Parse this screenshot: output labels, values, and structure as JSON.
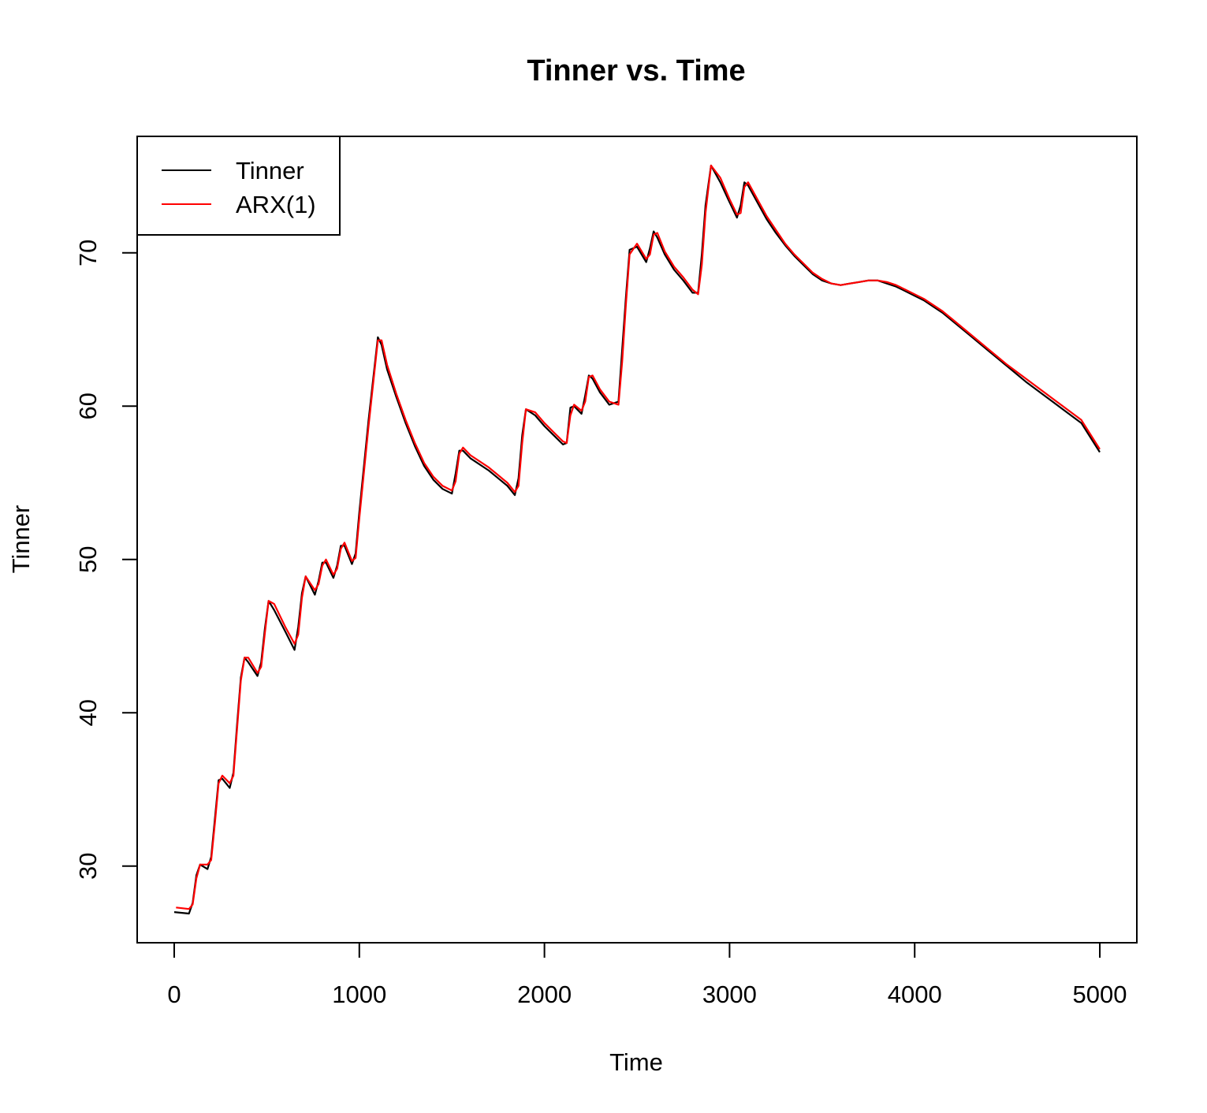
{
  "chart_data": {
    "type": "line",
    "title": "Tinner vs. Time",
    "xlabel": "Time",
    "ylabel": "Tinner",
    "xlim": [
      -200,
      5200
    ],
    "ylim": [
      25,
      77.6
    ],
    "xticks": [
      0,
      1000,
      2000,
      3000,
      4000,
      5000
    ],
    "yticks": [
      30,
      40,
      50,
      60,
      70
    ],
    "grid": false,
    "legend": {
      "position": "top-left",
      "entries": [
        "Tinner",
        "ARX(1)"
      ]
    },
    "series": [
      {
        "name": "Tinner",
        "color": "#000000",
        "x": [
          0,
          80,
          100,
          120,
          140,
          180,
          200,
          220,
          240,
          260,
          300,
          320,
          340,
          360,
          380,
          400,
          450,
          470,
          490,
          510,
          540,
          600,
          650,
          670,
          690,
          710,
          760,
          780,
          800,
          820,
          860,
          880,
          900,
          920,
          960,
          980,
          1000,
          1050,
          1100,
          1120,
          1150,
          1200,
          1250,
          1300,
          1350,
          1400,
          1450,
          1500,
          1520,
          1540,
          1560,
          1600,
          1700,
          1800,
          1840,
          1860,
          1880,
          1900,
          1950,
          2000,
          2050,
          2100,
          2120,
          2140,
          2160,
          2200,
          2220,
          2240,
          2260,
          2300,
          2350,
          2400,
          2420,
          2440,
          2460,
          2500,
          2550,
          2570,
          2590,
          2610,
          2650,
          2700,
          2750,
          2800,
          2830,
          2850,
          2870,
          2900,
          2950,
          3000,
          3040,
          3060,
          3080,
          3100,
          3150,
          3200,
          3250,
          3300,
          3350,
          3400,
          3450,
          3500,
          3550,
          3600,
          3650,
          3700,
          3750,
          3800,
          3850,
          3900,
          3950,
          4000,
          4050,
          4100,
          4150,
          4200,
          4300,
          4400,
          4500,
          4600,
          4700,
          4800,
          4900,
          5000
        ],
        "values": [
          27,
          26.9,
          27.6,
          29.4,
          30.1,
          29.8,
          30.6,
          33.1,
          35.6,
          35.7,
          35.1,
          36.1,
          39.3,
          42.3,
          43.6,
          43.3,
          42.4,
          43.3,
          45.5,
          47.3,
          46.7,
          45.3,
          44.1,
          45.6,
          47.8,
          48.9,
          47.7,
          48.6,
          49.8,
          49.8,
          48.8,
          49.6,
          50.9,
          50.9,
          49.7,
          50.4,
          53.1,
          59.1,
          64.5,
          64.0,
          62.4,
          60.6,
          58.9,
          57.4,
          56.1,
          55.2,
          54.6,
          54.3,
          55.6,
          57.1,
          57.1,
          56.6,
          55.8,
          54.8,
          54.2,
          55.3,
          58.1,
          59.8,
          59.4,
          58.7,
          58.1,
          57.5,
          57.6,
          59.9,
          60.0,
          59.5,
          60.7,
          62.0,
          61.8,
          60.9,
          60.1,
          60.3,
          63.7,
          67.1,
          70.2,
          70.4,
          69.4,
          70.3,
          71.4,
          71.0,
          69.9,
          68.9,
          68.2,
          67.4,
          67.4,
          69.9,
          73.1,
          75.7,
          74.6,
          73.3,
          72.3,
          73.1,
          74.6,
          74.4,
          73.3,
          72.2,
          71.3,
          70.5,
          69.8,
          69.2,
          68.6,
          68.2,
          68.0,
          67.9,
          68.0,
          68.1,
          68.2,
          68.2,
          68.0,
          67.8,
          67.5,
          67.2,
          66.9,
          66.5,
          66.1,
          65.6,
          64.6,
          63.6,
          62.6,
          61.6,
          60.7,
          59.8,
          58.9,
          57.0
        ]
      },
      {
        "name": "ARX(1)",
        "color": "#ff0000",
        "x": [
          10,
          80,
          100,
          120,
          140,
          180,
          200,
          220,
          240,
          260,
          300,
          320,
          340,
          360,
          380,
          400,
          450,
          470,
          490,
          510,
          540,
          600,
          650,
          670,
          690,
          710,
          760,
          780,
          800,
          820,
          860,
          880,
          900,
          920,
          960,
          980,
          1000,
          1050,
          1100,
          1120,
          1150,
          1200,
          1250,
          1300,
          1350,
          1400,
          1450,
          1500,
          1520,
          1540,
          1560,
          1600,
          1700,
          1800,
          1840,
          1860,
          1880,
          1900,
          1950,
          2000,
          2050,
          2100,
          2120,
          2140,
          2160,
          2200,
          2220,
          2240,
          2260,
          2300,
          2350,
          2400,
          2420,
          2440,
          2460,
          2500,
          2550,
          2570,
          2590,
          2610,
          2650,
          2700,
          2750,
          2800,
          2830,
          2850,
          2870,
          2900,
          2950,
          3000,
          3040,
          3060,
          3080,
          3100,
          3150,
          3200,
          3250,
          3300,
          3350,
          3400,
          3450,
          3500,
          3550,
          3600,
          3650,
          3700,
          3750,
          3800,
          3850,
          3900,
          3950,
          4000,
          4050,
          4100,
          4150,
          4200,
          4300,
          4400,
          4500,
          4600,
          4700,
          4800,
          4900,
          5000
        ],
        "values": [
          27.3,
          27.2,
          27.5,
          29.2,
          30.1,
          30.1,
          30.4,
          32.8,
          35.4,
          35.9,
          35.4,
          35.9,
          39.0,
          42.1,
          43.6,
          43.6,
          42.6,
          43.0,
          45.2,
          47.3,
          47.1,
          45.6,
          44.5,
          45.1,
          47.5,
          48.9,
          48.0,
          48.4,
          49.6,
          50.0,
          49.0,
          49.4,
          50.7,
          51.1,
          49.9,
          50.1,
          52.7,
          58.7,
          64.3,
          64.3,
          62.7,
          60.8,
          59.1,
          57.6,
          56.3,
          55.4,
          54.8,
          54.5,
          55.1,
          56.9,
          57.3,
          56.8,
          56.0,
          55.0,
          54.4,
          54.8,
          57.6,
          59.8,
          59.6,
          58.9,
          58.3,
          57.7,
          57.6,
          59.4,
          60.1,
          59.7,
          60.3,
          61.9,
          62.0,
          61.1,
          60.3,
          60.1,
          62.9,
          66.6,
          69.9,
          70.6,
          69.6,
          69.9,
          71.2,
          71.3,
          70.1,
          69.1,
          68.4,
          67.6,
          67.3,
          69.2,
          72.6,
          75.7,
          74.9,
          73.5,
          72.5,
          72.6,
          74.3,
          74.6,
          73.5,
          72.4,
          71.5,
          70.6,
          69.9,
          69.3,
          68.7,
          68.3,
          68.0,
          67.9,
          68.0,
          68.1,
          68.2,
          68.2,
          68.1,
          67.9,
          67.6,
          67.3,
          67.0,
          66.6,
          66.2,
          65.7,
          64.7,
          63.7,
          62.7,
          61.8,
          60.9,
          60.0,
          59.1,
          57.2
        ]
      }
    ]
  }
}
